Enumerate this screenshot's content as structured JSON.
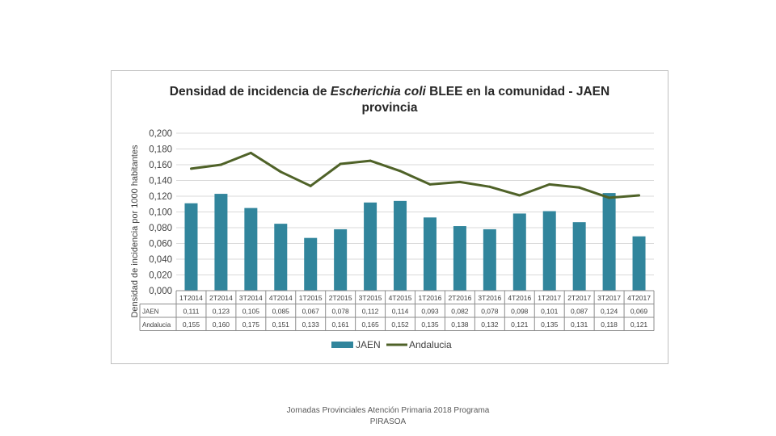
{
  "chart_data": {
    "type": "bar",
    "title_parts": [
      "Densidad de incidencia de ",
      "Escherichia coli",
      " BLEE en la comunidad - JAEN",
      "provincia"
    ],
    "ylabel": "Densidad de incidencia por 1000 habitantes",
    "xlabel": "",
    "ylim": [
      0,
      0.2
    ],
    "yticks": [
      "0,000",
      "0,020",
      "0,040",
      "0,060",
      "0,080",
      "0,100",
      "0,120",
      "0,140",
      "0,160",
      "0,180",
      "0,200"
    ],
    "grid": true,
    "legend": "bottom",
    "categories": [
      "1T2014",
      "2T2014",
      "3T2014",
      "4T2014",
      "1T2015",
      "2T2015",
      "3T2015",
      "4T2015",
      "1T2016",
      "2T2016",
      "3T2016",
      "4T2016",
      "1T2017",
      "2T2017",
      "3T2017",
      "4T2017"
    ],
    "series": [
      {
        "name": "JAEN",
        "kind": "bar",
        "color": "#31859c",
        "values": [
          0.111,
          0.123,
          0.105,
          0.085,
          0.067,
          0.078,
          0.112,
          0.114,
          0.093,
          0.082,
          0.078,
          0.098,
          0.101,
          0.087,
          0.124,
          0.069
        ],
        "labels": [
          "0,111",
          "0,123",
          "0,105",
          "0,085",
          "0,067",
          "0,078",
          "0,112",
          "0,114",
          "0,093",
          "0,082",
          "0,078",
          "0,098",
          "0,101",
          "0,087",
          "0,124",
          "0,069"
        ]
      },
      {
        "name": "Andalucia",
        "table_name": "Andalucia",
        "kind": "line",
        "color": "#4f6228",
        "values": [
          0.155,
          0.16,
          0.175,
          0.151,
          0.133,
          0.161,
          0.165,
          0.152,
          0.135,
          0.138,
          0.132,
          0.121,
          0.135,
          0.131,
          0.118,
          0.121
        ],
        "labels": [
          "0,155",
          "0,160",
          "0,175",
          "0,151",
          "0,133",
          "0,161",
          "0,165",
          "0,152",
          "0,135",
          "0,138",
          "0,132",
          "0,121",
          "0,135",
          "0,131",
          "0,118",
          "0,121"
        ]
      }
    ]
  },
  "footer": {
    "line1": "Jornadas Provinciales Atención Primaria 2018 Programa",
    "line2": "PIRASOA"
  }
}
